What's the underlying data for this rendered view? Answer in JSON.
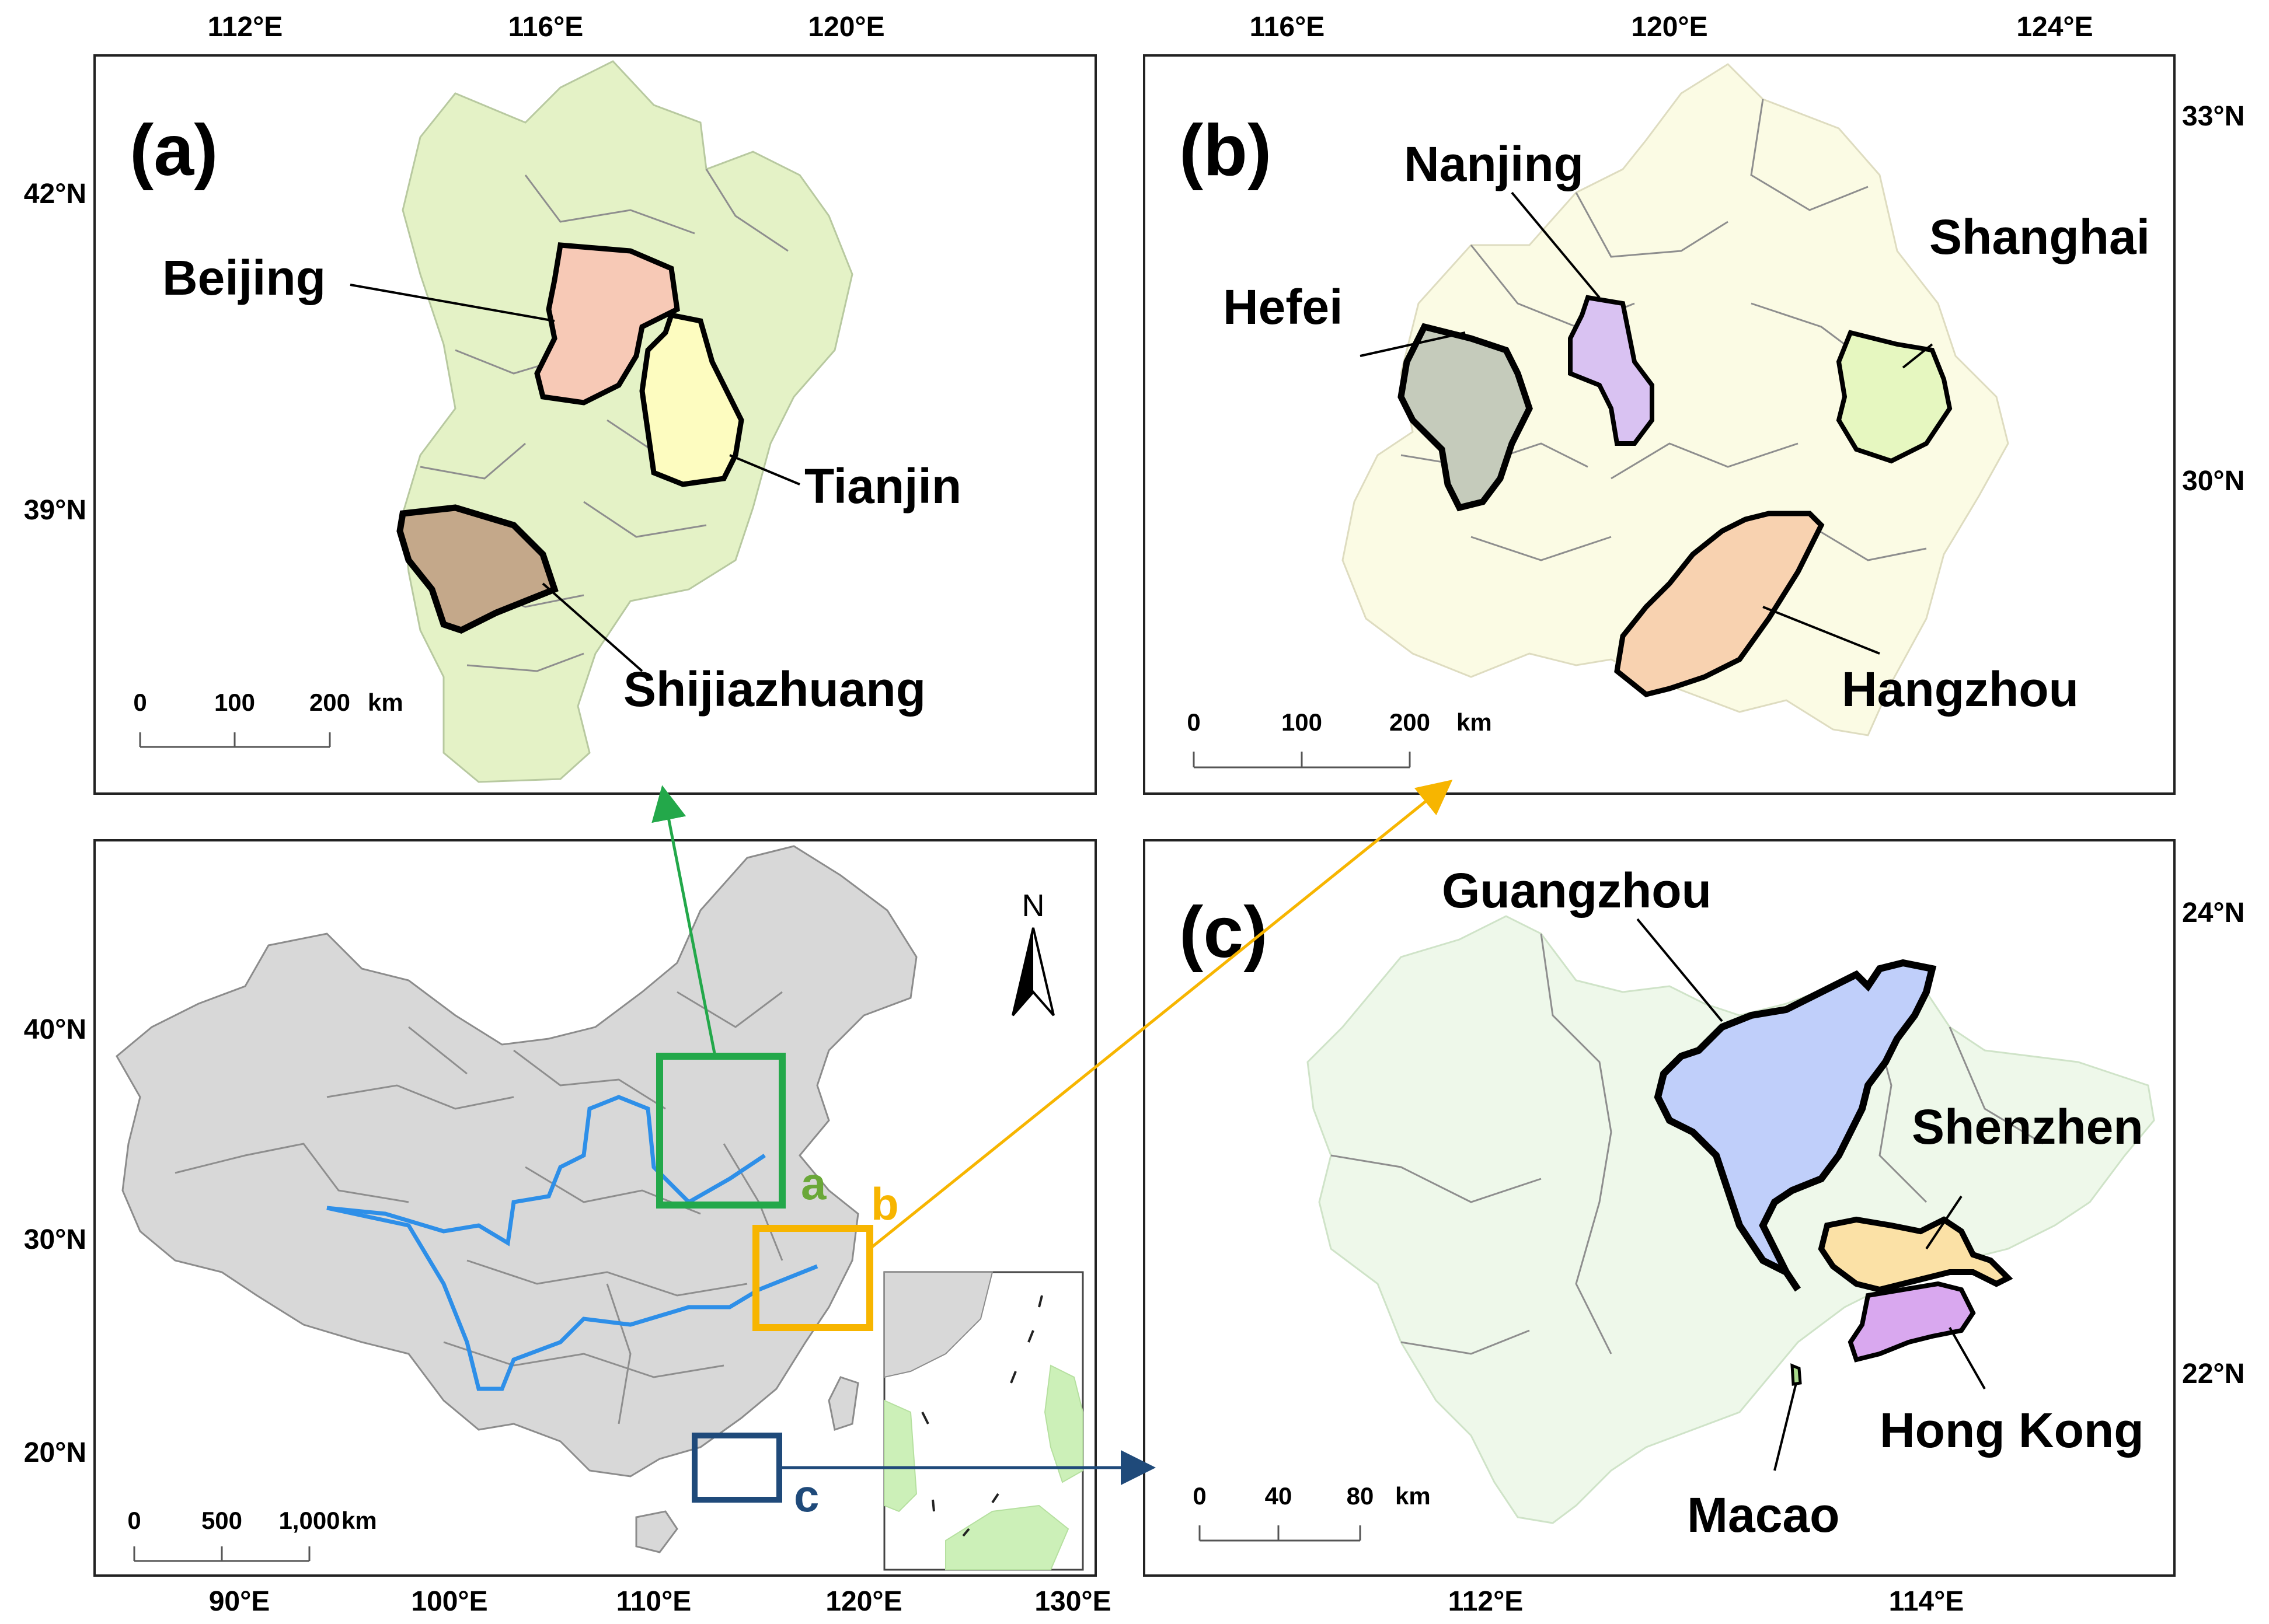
{
  "panel_a": {
    "letter": "(a)",
    "top_ticks": [
      "112°E",
      "116°E",
      "120°E"
    ],
    "left_ticks": [
      "42°N",
      "39°N"
    ],
    "cities": [
      "Beijing",
      "Tianjin",
      "Shijiazhuang"
    ],
    "scale": {
      "labels": [
        "0",
        "100",
        "200"
      ],
      "unit": "km"
    },
    "colors": {
      "region": "#e4f2c6",
      "beijing": "#f7c9b6",
      "tianjin": "#fdfcc0",
      "shijiazhuang": "#c4a88a"
    }
  },
  "panel_b": {
    "letter": "(b)",
    "top_ticks": [
      "116°E",
      "120°E",
      "124°E"
    ],
    "right_ticks": [
      "33°N",
      "30°N"
    ],
    "cities": [
      "Nanjing",
      "Shanghai",
      "Hefei",
      "Hangzhou"
    ],
    "scale": {
      "labels": [
        "0",
        "100",
        "200"
      ],
      "unit": "km"
    },
    "colors": {
      "region": "#fbfbe4",
      "hefei": "#c5cbbb",
      "nanjing": "#d9c2f2",
      "shanghai": "#e6f7c0",
      "hangzhou": "#f8d2b0"
    }
  },
  "panel_c": {
    "letter": "(c)",
    "bottom_ticks": [
      "112°E",
      "114°E"
    ],
    "right_ticks": [
      "24°N",
      "22°N"
    ],
    "cities": [
      "Guangzhou",
      "Shenzhen",
      "Hong Kong",
      "Macao"
    ],
    "scale": {
      "labels": [
        "0",
        "40",
        "80"
      ],
      "unit": "km"
    },
    "colors": {
      "region": "#eef8ea",
      "guangzhou": "#c0cffa",
      "shenzhen": "#fbe1a6",
      "hongkong": "#d9a8ef",
      "macao": "#a9d98c"
    }
  },
  "overview": {
    "bottom_ticks": [
      "90°E",
      "100°E",
      "110°E",
      "120°E",
      "130°E"
    ],
    "left_ticks": [
      "40°N",
      "30°N",
      "20°N"
    ],
    "north_label": "N",
    "box_labels": {
      "a": "a",
      "b": "b",
      "c": "c"
    },
    "scale": {
      "labels": [
        "0",
        "500",
        "1,000"
      ],
      "unit": "km"
    },
    "colors": {
      "land": "#d8d8d8",
      "river": "#2e8fe8",
      "box_a": "#23a84a",
      "box_b": "#f7b500",
      "box_c": "#1f4a7a",
      "label_a": "#6aa838"
    }
  }
}
